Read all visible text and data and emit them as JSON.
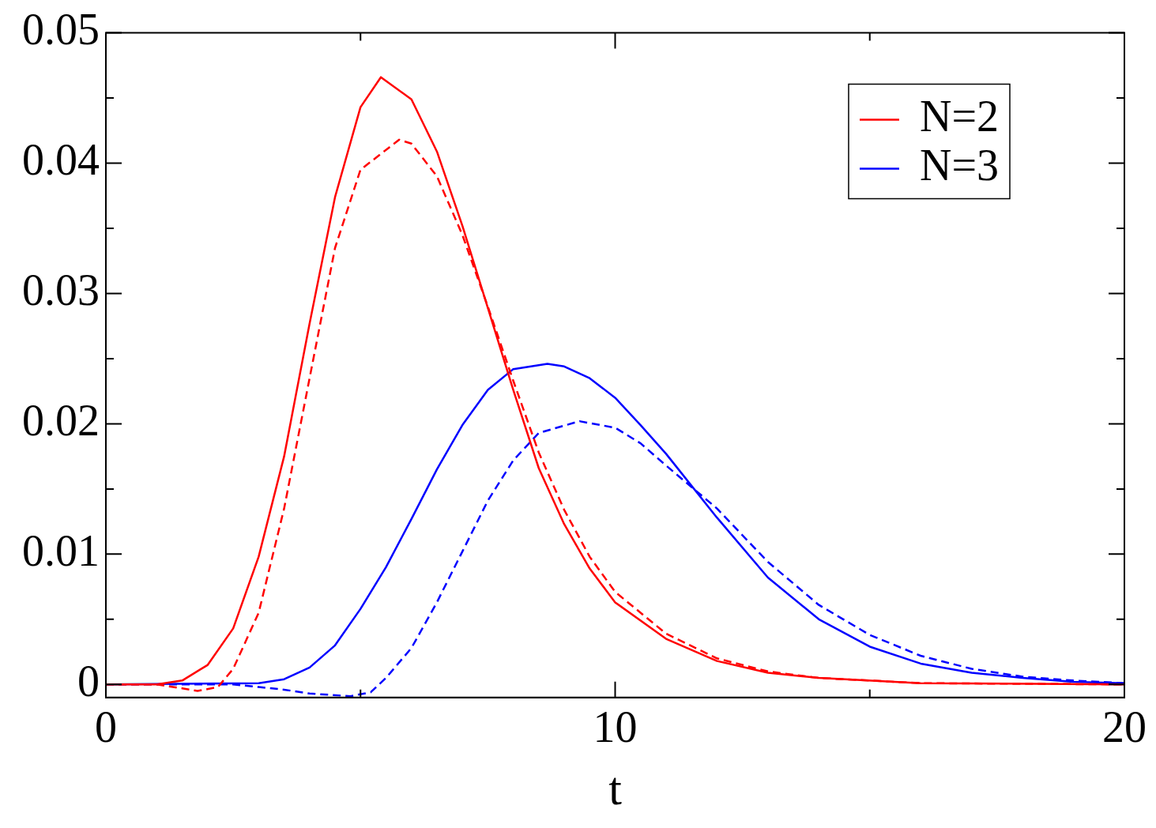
{
  "chart_data": {
    "type": "line",
    "xlabel": "t",
    "xlim": [
      0,
      20
    ],
    "ylim": [
      -0.001,
      0.05
    ],
    "xticks": [
      0,
      {
        "value": 5,
        "label": null
      },
      10,
      {
        "value": 15,
        "label": null
      },
      20
    ],
    "yticks": [
      0,
      {
        "value": 0.005,
        "label": null
      },
      0.01,
      {
        "value": 0.015,
        "label": null
      },
      0.02,
      {
        "value": 0.025,
        "label": null
      },
      0.03,
      {
        "value": 0.035,
        "label": null
      },
      0.04,
      {
        "value": 0.045,
        "label": null
      },
      0.05
    ],
    "grid": false,
    "legend": "top right",
    "marker": "none",
    "series": [
      {
        "name": "N=2",
        "color": "#ff0000",
        "line_style": "solid",
        "x": [
          0,
          1,
          1.5,
          2,
          2.5,
          3,
          3.5,
          4,
          4.5,
          5,
          5.4,
          6,
          6.5,
          7,
          7.5,
          8,
          8.5,
          9,
          9.5,
          10,
          11,
          12,
          13,
          14,
          16,
          20
        ],
        "values": [
          0,
          0,
          0.0003,
          0.0015,
          0.0043,
          0.0098,
          0.0175,
          0.0277,
          0.0374,
          0.0443,
          0.0466,
          0.0449,
          0.0409,
          0.0352,
          0.0289,
          0.0226,
          0.0166,
          0.0123,
          0.0089,
          0.0063,
          0.0035,
          0.0018,
          0.0009,
          0.0005,
          0.0001,
          0
        ]
      },
      {
        "color": "#ff0000",
        "line_style": "dashed",
        "x": [
          0,
          1,
          1.5,
          1.8,
          2.2,
          2.5,
          3,
          3.5,
          4,
          4.5,
          5,
          5.76,
          6,
          6.5,
          7,
          7.5,
          8,
          8.5,
          9,
          9.5,
          10,
          11,
          12,
          13,
          14,
          16,
          20
        ],
        "values": [
          0,
          0,
          -0.0003,
          -0.0005,
          -0.0002,
          0.0012,
          0.0055,
          0.0135,
          0.0235,
          0.0335,
          0.0395,
          0.0418,
          0.0415,
          0.039,
          0.0345,
          0.029,
          0.0233,
          0.0178,
          0.0134,
          0.0098,
          0.0071,
          0.0039,
          0.002,
          0.001,
          0.0005,
          0.0001,
          0
        ]
      },
      {
        "name": "N=3",
        "color": "#0000ff",
        "line_style": "solid",
        "x": [
          0,
          3,
          3.5,
          4,
          4.5,
          5,
          5.5,
          6,
          6.5,
          7,
          7.5,
          8,
          8.67,
          9,
          9.5,
          10,
          10.5,
          11,
          12,
          13,
          14,
          15,
          16,
          17,
          18,
          19,
          20
        ],
        "values": [
          0,
          0.0001,
          0.0004,
          0.0013,
          0.003,
          0.0058,
          0.009,
          0.0127,
          0.0165,
          0.0199,
          0.0226,
          0.0242,
          0.0246,
          0.0244,
          0.0235,
          0.022,
          0.0199,
          0.0177,
          0.0128,
          0.0082,
          0.005,
          0.0029,
          0.0016,
          0.0009,
          0.0005,
          0.0002,
          0.0001
        ]
      },
      {
        "color": "#0000ff",
        "line_style": "dashed",
        "x": [
          0,
          2.5,
          3,
          3.5,
          4,
          4.8,
          5.2,
          5.5,
          6,
          6.5,
          7,
          7.5,
          8,
          8.5,
          9.3,
          10,
          10.5,
          11,
          12,
          13,
          14,
          15,
          16,
          17,
          18,
          19,
          20
        ],
        "values": [
          0,
          0,
          -0.0002,
          -0.0004,
          -0.0007,
          -0.0009,
          -0.0006,
          0.0005,
          0.0028,
          0.0063,
          0.0102,
          0.0141,
          0.0172,
          0.0193,
          0.0202,
          0.0197,
          0.0185,
          0.0168,
          0.0135,
          0.0094,
          0.0061,
          0.0038,
          0.0022,
          0.0012,
          0.0006,
          0.0003,
          0.0001
        ]
      }
    ]
  }
}
